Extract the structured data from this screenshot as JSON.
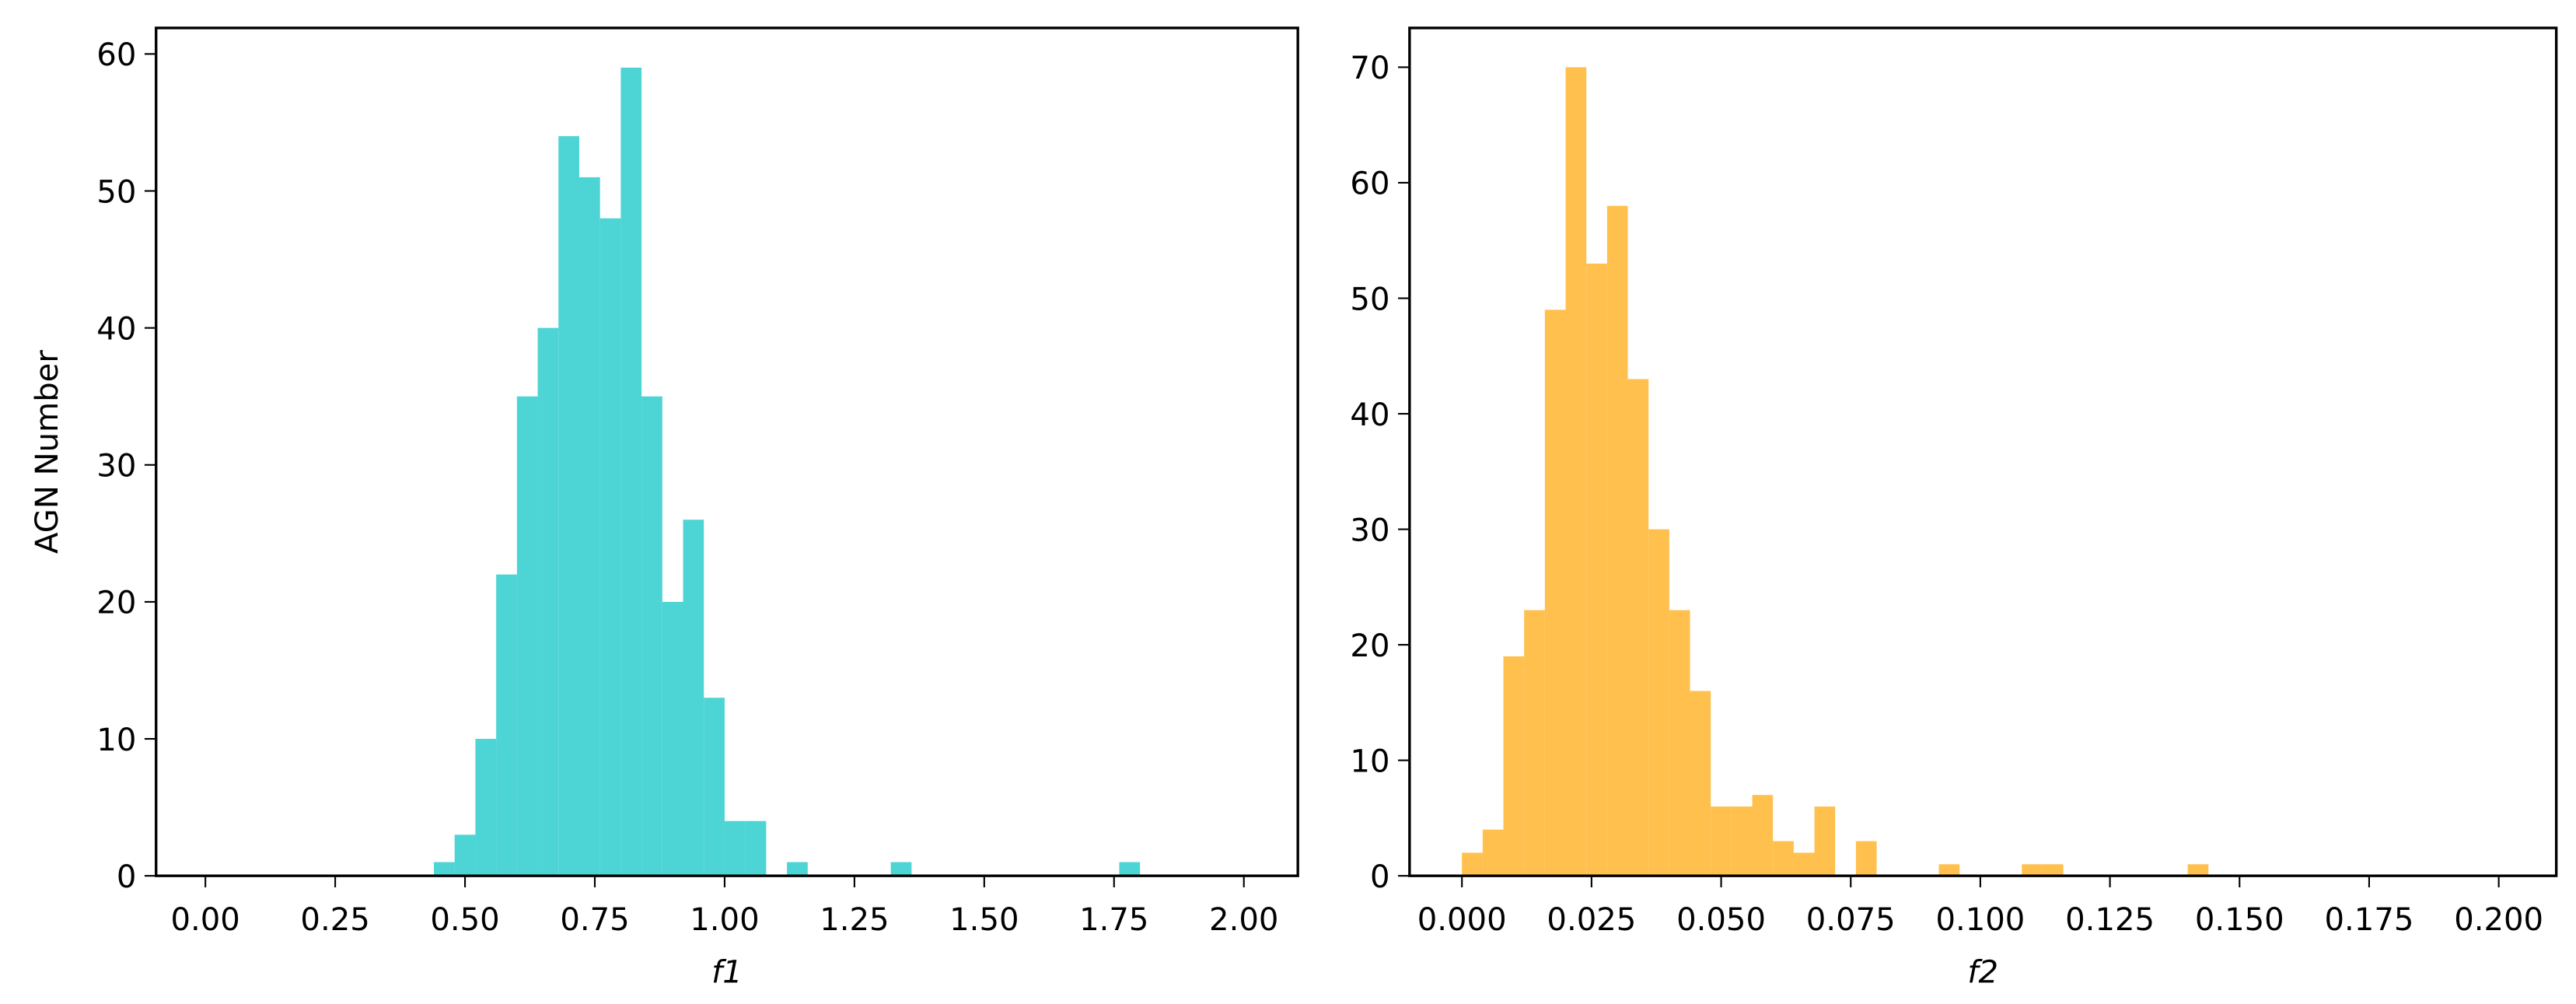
{
  "chart_data": [
    {
      "type": "histogram",
      "color": "#4dd4d4",
      "xlabel": "f1",
      "ylabel": "AGN Number",
      "bins": [
        0,
        0.04,
        0.08,
        0.12,
        0.16,
        0.2,
        0.24,
        0.28,
        0.32,
        0.36,
        0.4,
        0.44,
        0.48,
        0.52,
        0.56,
        0.6,
        0.64,
        0.68,
        0.72,
        0.76,
        0.8,
        0.84,
        0.88,
        0.92,
        0.96,
        1.0,
        1.04,
        1.08,
        1.12,
        1.16,
        1.2,
        1.24,
        1.28,
        1.32,
        1.36,
        1.4,
        1.44,
        1.48,
        1.52,
        1.56,
        1.6,
        1.64,
        1.68,
        1.72,
        1.76,
        1.8,
        1.84,
        1.88,
        1.92,
        1.96,
        2.0
      ],
      "values": [
        0,
        0,
        0,
        0,
        0,
        0,
        0,
        0,
        0,
        0,
        0,
        1,
        3,
        10,
        22,
        35,
        40,
        54,
        51,
        48,
        59,
        35,
        20,
        26,
        13,
        4,
        4,
        0,
        1,
        0,
        0,
        0,
        0,
        1,
        0,
        0,
        0,
        0,
        0,
        0,
        0,
        0,
        0,
        0,
        1,
        0,
        0,
        0,
        0,
        0
      ],
      "xlim": [
        -0.095,
        2.104
      ],
      "ylim": [
        0,
        61.9
      ],
      "xticks": [
        {
          "value": 0,
          "label": "0.00"
        },
        {
          "value": 0.25,
          "label": "0.25"
        },
        {
          "value": 0.5,
          "label": "0.50"
        },
        {
          "value": 0.75,
          "label": "0.75"
        },
        {
          "value": 1,
          "label": "1.00"
        },
        {
          "value": 1.25,
          "label": "1.25"
        },
        {
          "value": 1.5,
          "label": "1.50"
        },
        {
          "value": 1.75,
          "label": "1.75"
        },
        {
          "value": 2,
          "label": "2.00"
        }
      ],
      "yticks": [
        0,
        10,
        20,
        30,
        40,
        50,
        60
      ]
    },
    {
      "type": "histogram",
      "color": "#ffc04d",
      "xlabel": "f2",
      "bins": [
        0,
        0.004,
        0.008,
        0.012,
        0.016,
        0.02,
        0.024,
        0.028,
        0.032,
        0.036,
        0.04,
        0.044,
        0.048,
        0.052,
        0.056,
        0.06,
        0.064,
        0.068,
        0.072,
        0.076,
        0.08,
        0.084,
        0.088,
        0.092,
        0.096,
        0.1,
        0.104,
        0.108,
        0.112,
        0.116,
        0.12,
        0.124,
        0.128,
        0.132,
        0.136,
        0.14,
        0.144,
        0.148,
        0.152,
        0.156,
        0.16,
        0.164,
        0.168,
        0.172,
        0.176,
        0.18,
        0.184,
        0.188,
        0.192,
        0.196,
        0.2
      ],
      "values": [
        2,
        4,
        19,
        23,
        49,
        70,
        53,
        58,
        43,
        30,
        23,
        16,
        6,
        6,
        7,
        3,
        2,
        6,
        0,
        3,
        0,
        0,
        0,
        1,
        0,
        0,
        0,
        1,
        1,
        0,
        0,
        0,
        0,
        0,
        0,
        1,
        0,
        0,
        0,
        0,
        0,
        0,
        0,
        0,
        0,
        0,
        0,
        0,
        0,
        0
      ],
      "xlim": [
        -0.0101,
        0.2111
      ],
      "ylim": [
        0,
        73.4
      ],
      "xticks": [
        {
          "value": 0,
          "label": "0.000"
        },
        {
          "value": 0.025,
          "label": "0.025"
        },
        {
          "value": 0.05,
          "label": "0.050"
        },
        {
          "value": 0.075,
          "label": "0.075"
        },
        {
          "value": 0.1,
          "label": "0.100"
        },
        {
          "value": 0.125,
          "label": "0.125"
        },
        {
          "value": 0.15,
          "label": "0.150"
        },
        {
          "value": 0.175,
          "label": "0.175"
        },
        {
          "value": 0.2,
          "label": "0.200"
        }
      ],
      "yticks": [
        0,
        10,
        20,
        30,
        40,
        50,
        60,
        70
      ]
    }
  ]
}
